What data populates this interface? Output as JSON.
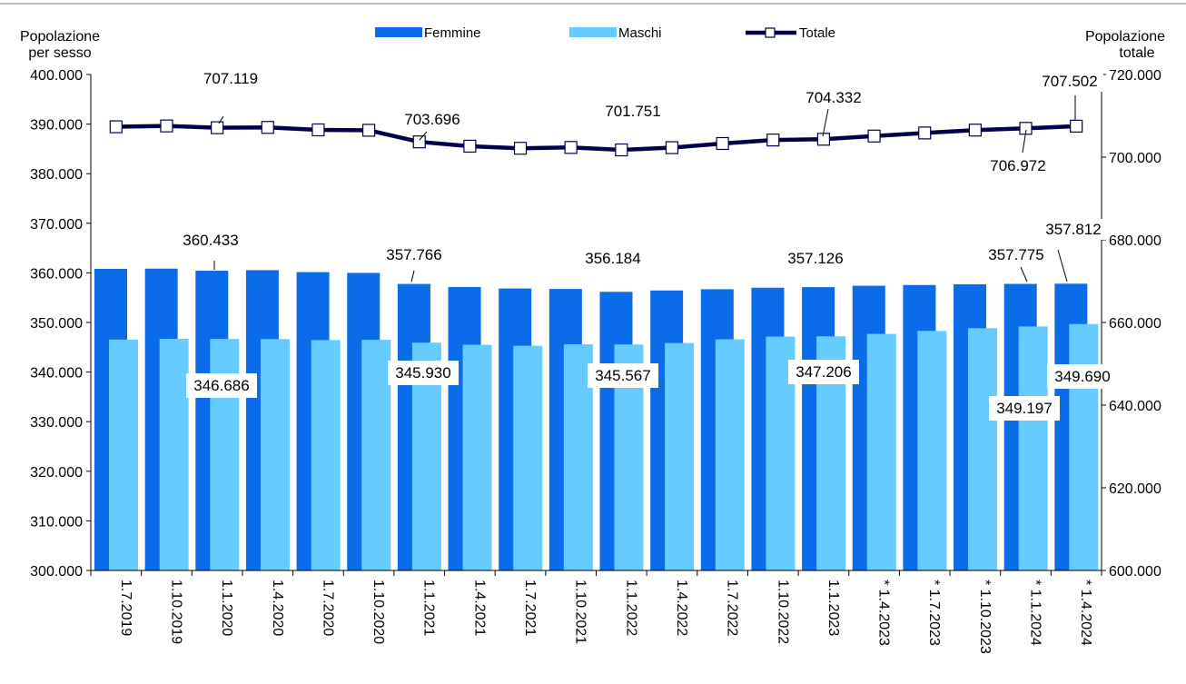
{
  "chart_data": {
    "type": "bar",
    "left_axis_title": [
      "Popolazione",
      "per sesso"
    ],
    "right_axis_title": [
      "Popolazione",
      "totale"
    ],
    "categories": [
      "1.7.2019",
      "1.10.2019",
      "1.1.2020",
      "1.4.2020",
      "1.7.2020",
      "1.10.2020",
      "1.1.2021",
      "1.4.2021",
      "1.7.2021",
      "1.10.2021",
      "1.1.2022",
      "1.4.2022",
      "1.7.2022",
      "1.10.2022",
      "1.1.2023",
      "* 1.4.2023",
      "* 1.7.2023",
      "* 1.10.2023",
      "* 1.1.2024",
      "* 1.4.2024"
    ],
    "ylim_left": [
      300000,
      400000
    ],
    "ylim_right": [
      600000,
      720000
    ],
    "left_ticks": [
      "300.000",
      "310.000",
      "320.000",
      "330.000",
      "340.000",
      "350.000",
      "360.000",
      "370.000",
      "380.000",
      "390.000",
      "400.000"
    ],
    "right_ticks": [
      "600.000",
      "620.000",
      "640.000",
      "660.000",
      "680.000",
      "700.000",
      "720.000"
    ],
    "legend": {
      "placement": "top",
      "entries": [
        "Femmine",
        "Maschi",
        "Totale"
      ]
    },
    "series": [
      {
        "name": "Femmine",
        "axis": "left",
        "kind": "bar",
        "color": "#0A6CE8",
        "values": [
          360800,
          360850,
          360433,
          360550,
          360150,
          360000,
          357766,
          357150,
          356850,
          356750,
          356184,
          356450,
          356700,
          357000,
          357126,
          357400,
          357550,
          357700,
          357775,
          357812
        ]
      },
      {
        "name": "Maschi",
        "axis": "left",
        "kind": "bar",
        "color": "#66CCFF",
        "values": [
          346550,
          346700,
          346686,
          346650,
          346450,
          346500,
          345930,
          345500,
          345300,
          345600,
          345567,
          345850,
          346600,
          347150,
          347206,
          347700,
          348300,
          348850,
          349197,
          349690
        ]
      },
      {
        "name": "Totale",
        "axis": "right",
        "kind": "line",
        "color": "#00004D",
        "values": [
          707350,
          707550,
          707119,
          707200,
          706600,
          706500,
          703696,
          702650,
          702150,
          702350,
          701751,
          702300,
          703300,
          704150,
          704332,
          705100,
          705850,
          706550,
          706972,
          707502
        ]
      }
    ],
    "data_labels": [
      {
        "series": 0,
        "index": 2,
        "text": "360.433"
      },
      {
        "series": 0,
        "index": 6,
        "text": "357.766"
      },
      {
        "series": 0,
        "index": 10,
        "text": "356.184"
      },
      {
        "series": 0,
        "index": 14,
        "text": "357.126"
      },
      {
        "series": 0,
        "index": 18,
        "text": "357.775"
      },
      {
        "series": 0,
        "index": 19,
        "text": "357.812"
      },
      {
        "series": 1,
        "index": 2,
        "text": "346.686"
      },
      {
        "series": 1,
        "index": 6,
        "text": "345.930"
      },
      {
        "series": 1,
        "index": 10,
        "text": "345.567"
      },
      {
        "series": 1,
        "index": 14,
        "text": "347.206"
      },
      {
        "series": 1,
        "index": 18,
        "text": "349.197"
      },
      {
        "series": 1,
        "index": 19,
        "text": "349.690"
      },
      {
        "series": 2,
        "index": 2,
        "text": "707.119"
      },
      {
        "series": 2,
        "index": 6,
        "text": "703.696"
      },
      {
        "series": 2,
        "index": 10,
        "text": "701.751"
      },
      {
        "series": 2,
        "index": 14,
        "text": "704.332"
      },
      {
        "series": 2,
        "index": 18,
        "text": "706.972"
      },
      {
        "series": 2,
        "index": 19,
        "text": "707.502"
      }
    ]
  }
}
